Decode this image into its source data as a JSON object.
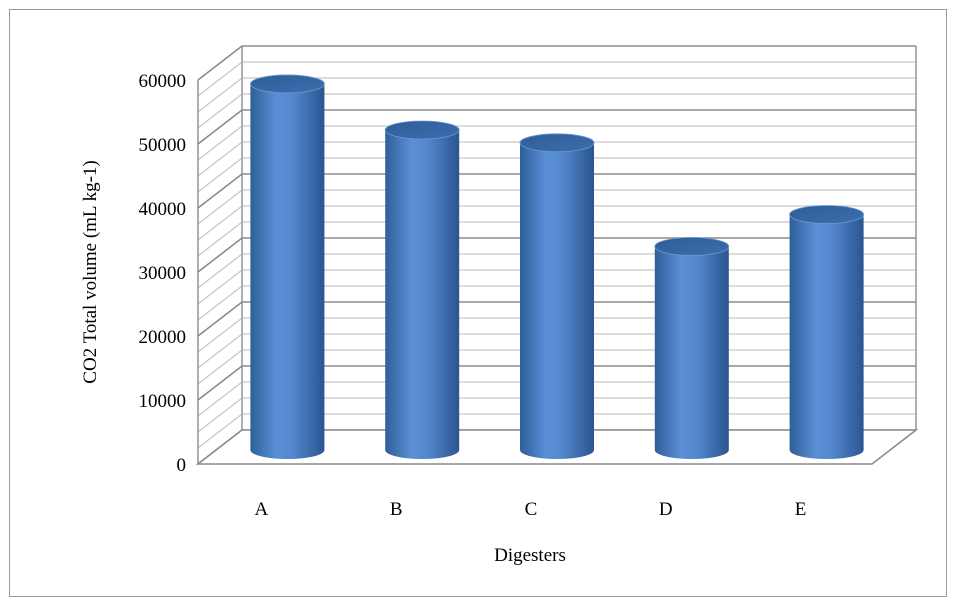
{
  "chart_data": {
    "type": "bar",
    "style": "3d-cylinder",
    "categories": [
      "A",
      "B",
      "C",
      "D",
      "E"
    ],
    "values": [
      57200,
      50000,
      48000,
      31800,
      36800
    ],
    "xlabel": "Digesters",
    "ylabel": "CO2  Total volume (mL kg-1)",
    "ylim": [
      0,
      60000
    ],
    "yticks": [
      0,
      10000,
      20000,
      30000,
      40000,
      50000,
      60000
    ],
    "grid": true,
    "bar_color": "#4f81bd"
  }
}
